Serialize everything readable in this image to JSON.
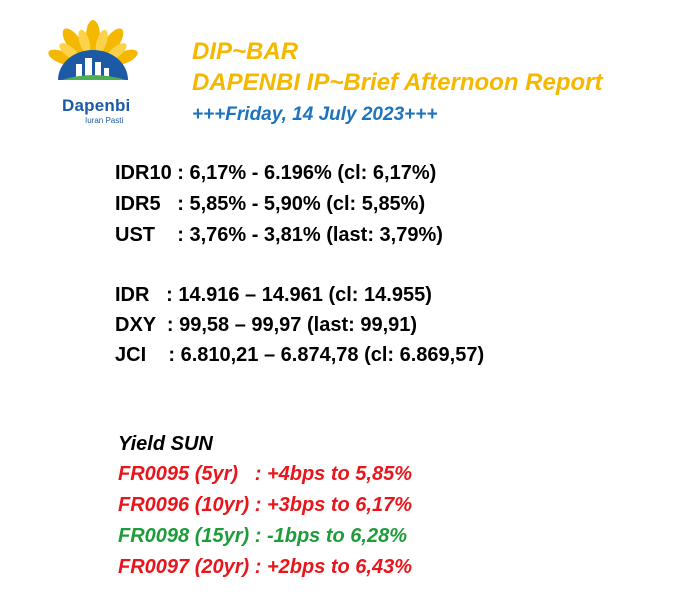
{
  "logo": {
    "word": "Dapenbi",
    "tagline": "Iuran Pasti",
    "colors": {
      "sun": "#f5b800",
      "blue": "#1d5aa6",
      "green": "#4caf50"
    }
  },
  "header": {
    "line1": "DIP~BAR",
    "line2": "DAPENBI IP~Brief Afternoon Report",
    "date": "+++Friday, 14 July 2023+++"
  },
  "yields": [
    "IDR10 : 6,17% - 6.196% (cl: 6,17%)",
    "IDR5   : 5,85% - 5,90% (cl: 5,85%)",
    "UST    : 3,76% - 3,81% (last: 3,79%)"
  ],
  "markets": [
    "IDR   : 14.916 – 14.961 (cl: 14.955)",
    "DXY  : 99,58 – 99,97 (last: 99,91)",
    "JCI    : 6.810,21 – 6.874,78 (cl: 6.869,57)"
  ],
  "sun": {
    "title": "Yield SUN",
    "rows": [
      {
        "text": "FR0095 (5yr)   : +4bps to 5,85%",
        "color": "#e8161c"
      },
      {
        "text": "FR0096 (10yr) : +3bps to 6,17%",
        "color": "#e8161c"
      },
      {
        "text": "FR0098 (15yr) : -1bps to 6,28%",
        "color": "#1e9c3a"
      },
      {
        "text": "FR0097 (20yr) : +2bps to 6,43%",
        "color": "#e8161c"
      }
    ]
  }
}
